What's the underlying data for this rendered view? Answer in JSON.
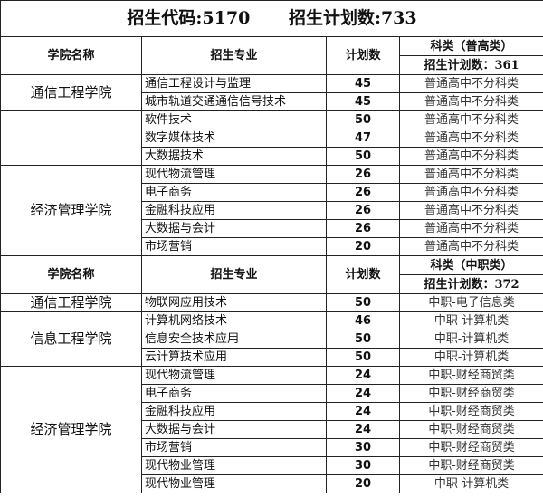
{
  "title": {
    "code_label": "招生代码:5170",
    "total_label": "招生计划数:733"
  },
  "sections": [
    {
      "headers": {
        "college": "学院名称",
        "major": "招生专业",
        "plan": "计划数",
        "category": "科类（普高类）",
        "category_plan": "招生计划数：361"
      },
      "groups": [
        {
          "college": "通信工程学院",
          "rows": [
            {
              "major": "通信工程设计与监理",
              "plan": "45",
              "category": "普通高中不分科类"
            },
            {
              "major": "城市轨道交通通信信号技术",
              "plan": "45",
              "category": "普通高中不分科类"
            }
          ]
        },
        {
          "college": "",
          "rows": [
            {
              "major": "软件技术",
              "plan": "50",
              "category": "普通高中不分科类"
            },
            {
              "major": "数字媒体技术",
              "plan": "47",
              "category": "普通高中不分科类"
            },
            {
              "major": "大数据技术",
              "plan": "50",
              "category": "普通高中不分科类"
            }
          ]
        },
        {
          "college": "经济管理学院",
          "rows": [
            {
              "major": "现代物流管理",
              "plan": "26",
              "category": "普通高中不分科类"
            },
            {
              "major": "电子商务",
              "plan": "26",
              "category": "普通高中不分科类"
            },
            {
              "major": "金融科技应用",
              "plan": "26",
              "category": "普通高中不分科类"
            },
            {
              "major": "大数据与会计",
              "plan": "26",
              "category": "普通高中不分科类"
            },
            {
              "major": "市场营销",
              "plan": "20",
              "category": "普通高中不分科类"
            }
          ]
        }
      ]
    },
    {
      "headers": {
        "college": "学院名称",
        "major": "招生专业",
        "plan": "计划数",
        "category": "科类（中职类）",
        "category_plan": "招生计划数：372"
      },
      "groups": [
        {
          "college": "通信工程学院",
          "rows": [
            {
              "major": "物联网应用技术",
              "plan": "50",
              "category": "中职-电子信息类"
            }
          ]
        },
        {
          "college": "信息工程学院",
          "rows": [
            {
              "major": "计算机网络技术",
              "plan": "46",
              "category": "中职-计算机类"
            },
            {
              "major": "信息安全技术应用",
              "plan": "50",
              "category": "中职-计算机类"
            },
            {
              "major": "云计算技术应用",
              "plan": "50",
              "category": "中职-计算机类"
            }
          ]
        },
        {
          "college": "经济管理学院",
          "rows": [
            {
              "major": "现代物流管理",
              "plan": "24",
              "category": "中职-财经商贸类"
            },
            {
              "major": "电子商务",
              "plan": "24",
              "category": "中职-财经商贸类"
            },
            {
              "major": "金融科技应用",
              "plan": "24",
              "category": "中职-财经商贸类"
            },
            {
              "major": "大数据与会计",
              "plan": "24",
              "category": "中职-财经商贸类"
            },
            {
              "major": "市场营销",
              "plan": "30",
              "category": "中职-财经商贸类"
            },
            {
              "major": "现代物业管理",
              "plan": "30",
              "category": "中职-财经商贸类"
            },
            {
              "major": "现代物业管理",
              "plan": "20",
              "category": "中职-计算机类"
            }
          ]
        }
      ]
    }
  ]
}
